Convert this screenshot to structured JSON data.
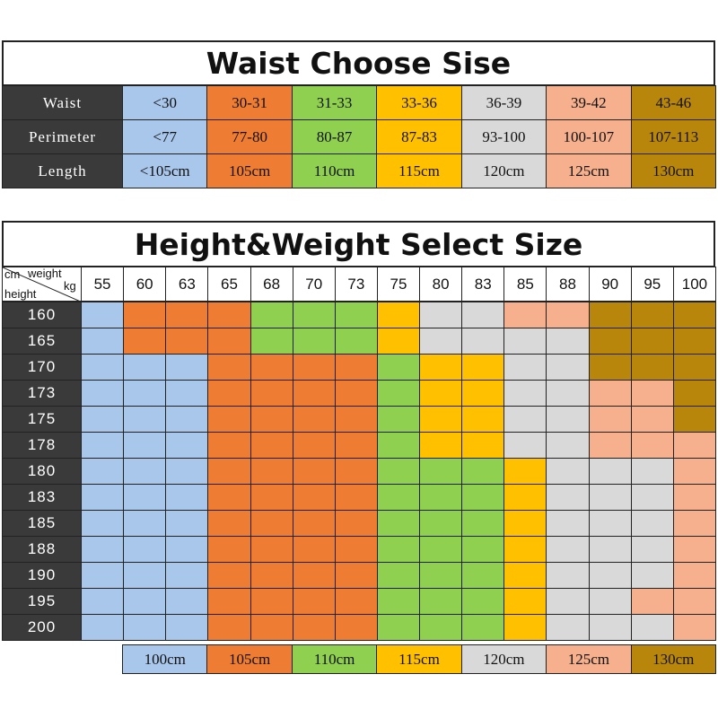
{
  "waist_table": {
    "title": "Waist Choose Sise",
    "colors": [
      "#a9c6eb",
      "#ee7c32",
      "#90d050",
      "#ffc000",
      "#d9d9d9",
      "#f6b08d",
      "#b8860a"
    ],
    "rows": [
      {
        "label": "Waist",
        "cells": [
          "<30",
          "30-31",
          "31-33",
          "33-36",
          "36-39",
          "39-42",
          "43-46"
        ]
      },
      {
        "label": "Perimeter",
        "cells": [
          "<77",
          "77-80",
          "80-87",
          "87-83",
          "93-100",
          "100-107",
          "107-113"
        ]
      },
      {
        "label": "Length",
        "cells": [
          "<105cm",
          "105cm",
          "110cm",
          "115cm",
          "120cm",
          "125cm",
          "130cm"
        ]
      }
    ]
  },
  "size_table": {
    "title": "Height&Weight Select Size",
    "corner": {
      "top_left": "cm",
      "top_right": "weight",
      "right": "kg",
      "bottom_left": "height"
    },
    "weights": [
      "55",
      "60",
      "63",
      "65",
      "68",
      "70",
      "73",
      "75",
      "80",
      "83",
      "85",
      "88",
      "90",
      "95",
      "100"
    ],
    "rows": [
      {
        "height": "160",
        "cells": [
          "#a9c6eb",
          "#ee7c32",
          "#ee7c32",
          "#ee7c32",
          "#90d050",
          "#90d050",
          "#90d050",
          "#ffc000",
          "#d9d9d9",
          "#d9d9d9",
          "#f6b08d",
          "#f6b08d",
          "#b8860a",
          "#b8860a",
          "#b8860a"
        ]
      },
      {
        "height": "165",
        "cells": [
          "#a9c6eb",
          "#ee7c32",
          "#ee7c32",
          "#ee7c32",
          "#90d050",
          "#90d050",
          "#90d050",
          "#ffc000",
          "#d9d9d9",
          "#d9d9d9",
          "#d9d9d9",
          "#d9d9d9",
          "#b8860a",
          "#b8860a",
          "#b8860a"
        ]
      },
      {
        "height": "170",
        "cells": [
          "#a9c6eb",
          "#a9c6eb",
          "#a9c6eb",
          "#ee7c32",
          "#ee7c32",
          "#ee7c32",
          "#ee7c32",
          "#90d050",
          "#ffc000",
          "#ffc000",
          "#d9d9d9",
          "#d9d9d9",
          "#b8860a",
          "#b8860a",
          "#b8860a"
        ]
      },
      {
        "height": "173",
        "cells": [
          "#a9c6eb",
          "#a9c6eb",
          "#a9c6eb",
          "#ee7c32",
          "#ee7c32",
          "#ee7c32",
          "#ee7c32",
          "#90d050",
          "#ffc000",
          "#ffc000",
          "#d9d9d9",
          "#d9d9d9",
          "#f6b08d",
          "#f6b08d",
          "#b8860a"
        ]
      },
      {
        "height": "175",
        "cells": [
          "#a9c6eb",
          "#a9c6eb",
          "#a9c6eb",
          "#ee7c32",
          "#ee7c32",
          "#ee7c32",
          "#ee7c32",
          "#90d050",
          "#ffc000",
          "#ffc000",
          "#d9d9d9",
          "#d9d9d9",
          "#f6b08d",
          "#f6b08d",
          "#b8860a"
        ]
      },
      {
        "height": "178",
        "cells": [
          "#a9c6eb",
          "#a9c6eb",
          "#a9c6eb",
          "#ee7c32",
          "#ee7c32",
          "#ee7c32",
          "#ee7c32",
          "#90d050",
          "#ffc000",
          "#ffc000",
          "#d9d9d9",
          "#d9d9d9",
          "#f6b08d",
          "#f6b08d",
          "#f6b08d"
        ]
      },
      {
        "height": "180",
        "cells": [
          "#a9c6eb",
          "#a9c6eb",
          "#a9c6eb",
          "#ee7c32",
          "#ee7c32",
          "#ee7c32",
          "#ee7c32",
          "#90d050",
          "#90d050",
          "#90d050",
          "#ffc000",
          "#d9d9d9",
          "#d9d9d9",
          "#d9d9d9",
          "#f6b08d"
        ]
      },
      {
        "height": "183",
        "cells": [
          "#a9c6eb",
          "#a9c6eb",
          "#a9c6eb",
          "#ee7c32",
          "#ee7c32",
          "#ee7c32",
          "#ee7c32",
          "#90d050",
          "#90d050",
          "#90d050",
          "#ffc000",
          "#d9d9d9",
          "#d9d9d9",
          "#d9d9d9",
          "#f6b08d"
        ]
      },
      {
        "height": "185",
        "cells": [
          "#a9c6eb",
          "#a9c6eb",
          "#a9c6eb",
          "#ee7c32",
          "#ee7c32",
          "#ee7c32",
          "#ee7c32",
          "#90d050",
          "#90d050",
          "#90d050",
          "#ffc000",
          "#d9d9d9",
          "#d9d9d9",
          "#d9d9d9",
          "#f6b08d"
        ]
      },
      {
        "height": "188",
        "cells": [
          "#a9c6eb",
          "#a9c6eb",
          "#a9c6eb",
          "#ee7c32",
          "#ee7c32",
          "#ee7c32",
          "#ee7c32",
          "#90d050",
          "#90d050",
          "#90d050",
          "#ffc000",
          "#d9d9d9",
          "#d9d9d9",
          "#d9d9d9",
          "#f6b08d"
        ]
      },
      {
        "height": "190",
        "cells": [
          "#a9c6eb",
          "#a9c6eb",
          "#a9c6eb",
          "#ee7c32",
          "#ee7c32",
          "#ee7c32",
          "#ee7c32",
          "#90d050",
          "#90d050",
          "#90d050",
          "#ffc000",
          "#d9d9d9",
          "#d9d9d9",
          "#d9d9d9",
          "#f6b08d"
        ]
      },
      {
        "height": "195",
        "cells": [
          "#a9c6eb",
          "#a9c6eb",
          "#a9c6eb",
          "#ee7c32",
          "#ee7c32",
          "#ee7c32",
          "#ee7c32",
          "#90d050",
          "#90d050",
          "#90d050",
          "#ffc000",
          "#d9d9d9",
          "#d9d9d9",
          "#f6b08d",
          "#f6b08d"
        ]
      },
      {
        "height": "200",
        "cells": [
          "#a9c6eb",
          "#a9c6eb",
          "#a9c6eb",
          "#ee7c32",
          "#ee7c32",
          "#ee7c32",
          "#ee7c32",
          "#90d050",
          "#90d050",
          "#90d050",
          "#ffc000",
          "#d9d9d9",
          "#d9d9d9",
          "#d9d9d9",
          "#f6b08d"
        ]
      }
    ]
  },
  "legend": [
    {
      "label": "100cm",
      "color": "#a9c6eb"
    },
    {
      "label": "105cm",
      "color": "#ee7c32"
    },
    {
      "label": "110cm",
      "color": "#90d050"
    },
    {
      "label": "115cm",
      "color": "#ffc000"
    },
    {
      "label": "120cm",
      "color": "#d9d9d9"
    },
    {
      "label": "125cm",
      "color": "#f6b08d"
    },
    {
      "label": "130cm",
      "color": "#b8860a"
    }
  ]
}
